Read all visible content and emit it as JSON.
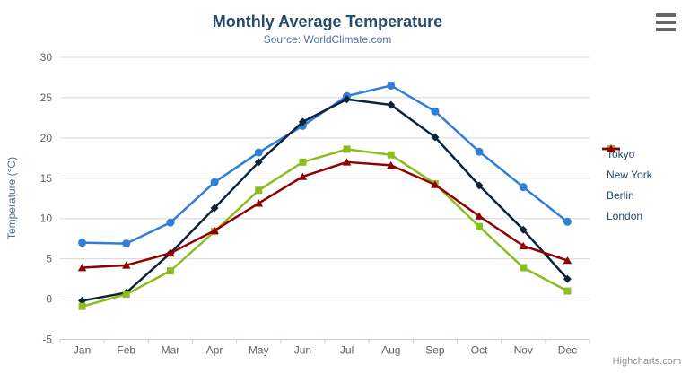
{
  "header": {
    "title": "Monthly Average Temperature",
    "subtitle": "Source: WorldClimate.com"
  },
  "chart_data": {
    "type": "line",
    "title": "Monthly Average Temperature",
    "subtitle": "Source: WorldClimate.com",
    "categories": [
      "Jan",
      "Feb",
      "Mar",
      "Apr",
      "May",
      "Jun",
      "Jul",
      "Aug",
      "Sep",
      "Oct",
      "Nov",
      "Dec"
    ],
    "series": [
      {
        "name": "Tokyo",
        "color": "#2f7ed8",
        "marker": "circle",
        "values": [
          7.0,
          6.9,
          9.5,
          14.5,
          18.2,
          21.5,
          25.2,
          26.5,
          23.3,
          18.3,
          13.9,
          9.6
        ]
      },
      {
        "name": "New York",
        "color": "#0d233a",
        "marker": "diamond",
        "values": [
          -0.2,
          0.8,
          5.7,
          11.3,
          17.0,
          22.0,
          24.8,
          24.1,
          20.1,
          14.1,
          8.6,
          2.5
        ]
      },
      {
        "name": "Berlin",
        "color": "#8bbc21",
        "marker": "square",
        "values": [
          -0.9,
          0.6,
          3.5,
          8.4,
          13.5,
          17.0,
          18.6,
          17.9,
          14.3,
          9.0,
          3.9,
          1.0
        ]
      },
      {
        "name": "London",
        "color": "#910000",
        "marker": "triangle",
        "values": [
          3.9,
          4.2,
          5.7,
          8.5,
          11.9,
          15.2,
          17.0,
          16.6,
          14.2,
          10.3,
          6.6,
          4.8
        ]
      }
    ],
    "xlabel": "",
    "ylabel": "Temperature (°C)",
    "ylim": [
      -5,
      30
    ],
    "ytick_step": 5,
    "grid": true,
    "legend_position": "right",
    "colors": {
      "title": "#274b6d",
      "subtitle": "#4d759e",
      "axis_labels": "#606060",
      "grid_line": "#d8d8d8",
      "axis_line": "#c0d0e0"
    }
  },
  "credits": {
    "label": "Highcharts.com"
  }
}
